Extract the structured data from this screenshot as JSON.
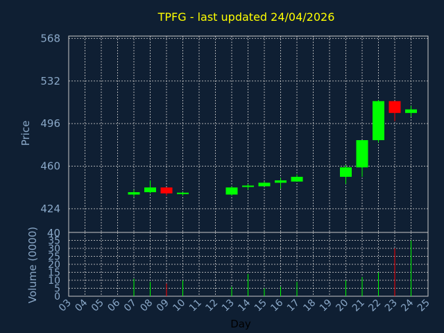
{
  "chart_data": {
    "type": "candlestick",
    "title": "TPFG - last updated 24/04/2026",
    "price_label": "Price",
    "volume_label": "Volume (0000)",
    "xlabel": "Day",
    "price_ticks": [
      424,
      460,
      496,
      532,
      568
    ],
    "price_ylim": [
      404,
      570
    ],
    "volume_ticks": [
      0,
      5,
      10,
      15,
      20,
      25,
      30,
      35
    ],
    "volume_ylim": [
      0,
      40
    ],
    "volume_top_tick": "40",
    "x_ticks": [
      "03",
      "04",
      "05",
      "06",
      "07",
      "08",
      "09",
      "10",
      "11",
      "12",
      "13",
      "14",
      "15",
      "16",
      "17",
      "18",
      "19",
      "20",
      "21",
      "22",
      "23",
      "24",
      "25"
    ],
    "grid": true,
    "up_color": "#00ff00",
    "down_color": "#ff0000",
    "candles": [
      {
        "day": "07",
        "open": 436,
        "close": 438,
        "high": 440,
        "low": 434,
        "volume": 11
      },
      {
        "day": "08",
        "open": 438,
        "close": 442,
        "high": 448,
        "low": 437,
        "volume": 9
      },
      {
        "day": "09",
        "open": 442,
        "close": 437,
        "high": 442,
        "low": 435,
        "volume": 8
      },
      {
        "day": "10",
        "open": 437,
        "close": 437,
        "high": 438,
        "low": 435,
        "volume": 10
      },
      {
        "day": "13",
        "open": 436,
        "close": 442,
        "high": 443,
        "low": 435,
        "volume": 6
      },
      {
        "day": "14",
        "open": 442,
        "close": 443,
        "high": 445,
        "low": 440,
        "volume": 14
      },
      {
        "day": "15",
        "open": 443,
        "close": 446,
        "high": 447,
        "low": 443,
        "volume": 5
      },
      {
        "day": "16",
        "open": 446,
        "close": 448,
        "high": 450,
        "low": 441,
        "volume": 6
      },
      {
        "day": "17",
        "open": 447,
        "close": 451,
        "high": 453,
        "low": 447,
        "volume": 9
      },
      {
        "day": "20",
        "open": 451,
        "close": 459,
        "high": 461,
        "low": 445,
        "volume": 10
      },
      {
        "day": "21",
        "open": 459,
        "close": 482,
        "high": 482,
        "low": 451,
        "volume": 12
      },
      {
        "day": "22",
        "open": 482,
        "close": 515,
        "high": 516,
        "low": 480,
        "volume": 15
      },
      {
        "day": "23",
        "open": 515,
        "close": 505,
        "high": 515,
        "low": 498,
        "volume": 30
      },
      {
        "day": "24",
        "open": 505,
        "close": 508,
        "high": 511,
        "low": 502,
        "volume": 35
      }
    ]
  }
}
